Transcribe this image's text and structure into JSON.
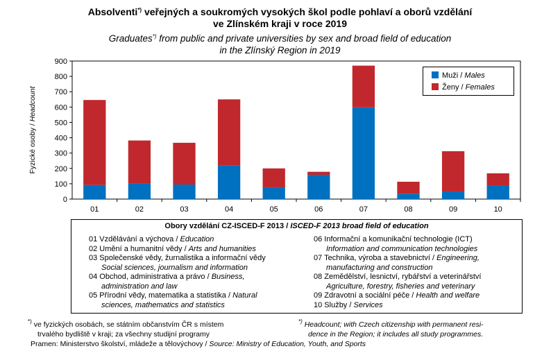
{
  "title": {
    "main_prefix": "Absolventi",
    "main_sup": "*)",
    "main_rest": " veřejných a soukromých vysokých škol podle pohlaví a oborů vzdělání",
    "main_line2": "ve Zlínském kraji v roce 2019",
    "sub_prefix": "Graduates",
    "sub_sup": "*)",
    "sub_rest": " from public and private universities by sex and broad field of education",
    "sub_line2": "in the Zlínský Region in 2019"
  },
  "chart_data": {
    "type": "bar",
    "stacked": true,
    "categories": [
      "01",
      "02",
      "03",
      "04",
      "05",
      "06",
      "07",
      "08",
      "09",
      "10"
    ],
    "series": [
      {
        "name": "Muži / Males",
        "name_cz": "Muži",
        "name_en": "Males",
        "color": "#0070c0",
        "values": [
          92,
          100,
          95,
          220,
          75,
          158,
          598,
          35,
          50,
          88
        ]
      },
      {
        "name": "Ženy / Females",
        "name_cz": "Ženy",
        "name_en": "Females",
        "color": "#c0282d",
        "values": [
          554,
          282,
          272,
          430,
          125,
          20,
          272,
          78,
          262,
          80
        ]
      }
    ],
    "ylabel_cz": "Fyzické osoby",
    "ylabel_en": "Headcount",
    "ylim": [
      0,
      900
    ],
    "yticks": [
      "0",
      "100",
      "200",
      "300",
      "400",
      "500",
      "600",
      "700",
      "800",
      "900"
    ],
    "grid": false,
    "legend": "top-right"
  },
  "legend": {
    "sep": " / "
  },
  "fields": {
    "heading_cz": "Obory vzdělání CZ-ISCED-F 2013",
    "heading_sep": " / ",
    "heading_en": "ISCED-F 2013 broad field of education",
    "left": [
      {
        "cz": "01 Vzdělávání a výchova",
        "sep": " / ",
        "en": "Education",
        "en2": ""
      },
      {
        "cz": "02 Umění a humanitní vědy",
        "sep": " / ",
        "en": "Arts and humanities",
        "en2": ""
      },
      {
        "cz": "03 Společenské vědy, žurnalistika a informační vědy",
        "sep": "",
        "en": "",
        "en2": "Social sciences, journalism and information"
      },
      {
        "cz": "04 Obchod, administrativa a právo",
        "sep": " / ",
        "en": "Business,",
        "en2": "administration and law"
      },
      {
        "cz": "05 Přírodní vědy, matematika a statistika",
        "sep": " / ",
        "en": "Natural",
        "en2": "sciences, mathematics and statistics"
      }
    ],
    "right": [
      {
        "cz": "06 Informační a komunikační technologie (ICT)",
        "sep": "",
        "en": "",
        "en2": "Information and communication technologies"
      },
      {
        "cz": "07 Technika, výroba a stavebnictví",
        "sep": " / ",
        "en": "Engineering,",
        "en2": "manufacturing and construction"
      },
      {
        "cz": "08 Zemědělství, lesnictví, rybářství a veterinářství",
        "sep": "",
        "en": "",
        "en2": "Agriculture, forestry, fisheries and veterinary"
      },
      {
        "cz": "09 Zdravotní a sociální péče",
        "sep": " / ",
        "en": "Health and welfare",
        "en2": ""
      },
      {
        "cz": "10 Služby",
        "sep": " / ",
        "en": "Services",
        "en2": ""
      }
    ]
  },
  "footnotes": {
    "left_mark": "*)",
    "left_line1": " ve fyzických osobách, se státním občanstvím ČR s místem",
    "left_line2": "trvalého bydliště v kraji; za všechny studijní programy",
    "right_mark": "*)",
    "right_line1": " Headcount; with Czech citizenship with permanent resi-",
    "right_line2": "dence in the Region; it includes all study programmes."
  },
  "source": {
    "cz": "Pramen: Ministerstvo školství, mládeže a tělovýchovy",
    "sep": " / ",
    "en": "Source: Ministry of Education, Youth, and Sports"
  }
}
